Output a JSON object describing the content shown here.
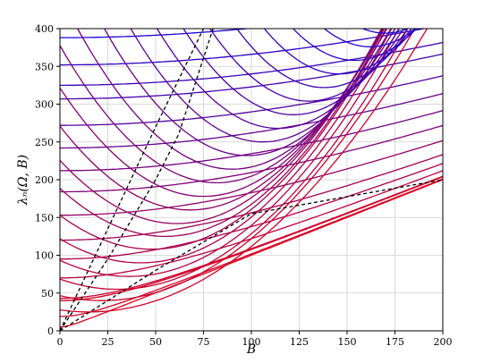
{
  "chart_data": {
    "type": "line",
    "xlabel": "B",
    "ylabel": "λₙ(Ω, B)",
    "xlim": [
      0,
      200
    ],
    "ylim": [
      0,
      400
    ],
    "x_ticks": [
      0,
      25,
      50,
      75,
      100,
      125,
      150,
      175,
      200
    ],
    "y_ticks": [
      0,
      50,
      100,
      150,
      200,
      250,
      300,
      350,
      400
    ],
    "grid": true,
    "families": [
      {
        "description_of_form": "λ = sqrt(a² + B²)",
        "a_values": [
          5,
          19,
          43,
          70,
          95,
          120,
          153,
          184,
          212,
          242,
          272,
          307,
          325,
          352,
          388
        ]
      },
      {
        "description_of_form": "λ = (B − c)² / d + m",
        "minima": [
          [
            15,
            25
          ],
          [
            22,
            40
          ],
          [
            30,
            55
          ],
          [
            36,
            72
          ],
          [
            42,
            90
          ],
          [
            48,
            108
          ],
          [
            55,
            125
          ],
          [
            61,
            142
          ],
          [
            68,
            160
          ],
          [
            75,
            178
          ],
          [
            82,
            196
          ],
          [
            90,
            214
          ],
          [
            98,
            232
          ],
          [
            106,
            250
          ],
          [
            114,
            268
          ],
          [
            122,
            286
          ],
          [
            130,
            304
          ],
          [
            138,
            322
          ],
          [
            146,
            340
          ],
          [
            154,
            358
          ],
          [
            162,
            376
          ],
          [
            170,
            394
          ]
        ]
      }
    ],
    "color_scale": [
      "#e0001b",
      "#1400dc"
    ],
    "dashed_lines": [
      {
        "style": "dashed",
        "points": [
          [
            0,
            0
          ],
          [
            25,
            135
          ],
          [
            50,
            270
          ],
          [
            75,
            400
          ]
        ]
      },
      {
        "style": "dashed",
        "points": [
          [
            0,
            0
          ],
          [
            25,
            95
          ],
          [
            50,
            200
          ],
          [
            62,
            260
          ],
          [
            80,
            400
          ]
        ]
      },
      {
        "style": "dashed",
        "points": [
          [
            0,
            0
          ],
          [
            25,
            40
          ],
          [
            50,
            80
          ],
          [
            100,
            155
          ],
          [
            200,
            200
          ]
        ]
      }
    ]
  }
}
